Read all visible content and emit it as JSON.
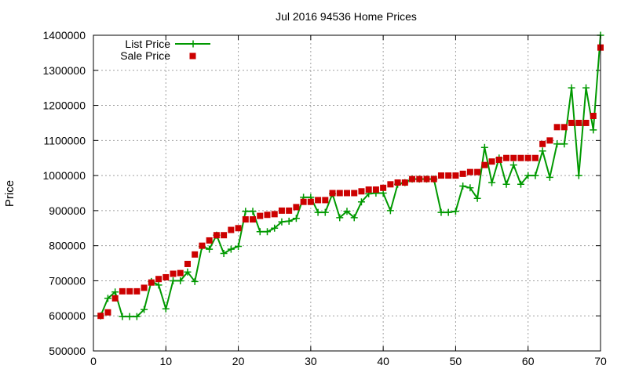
{
  "chart_data": {
    "type": "line",
    "title": "Jul 2016 94536 Home Prices",
    "xlabel": "",
    "ylabel": "Price",
    "xlim": [
      0,
      70
    ],
    "ylim": [
      500000,
      1400000
    ],
    "xticks": [
      0,
      10,
      20,
      30,
      40,
      50,
      60,
      70
    ],
    "yticks": [
      500000,
      600000,
      700000,
      800000,
      900000,
      1000000,
      1100000,
      1200000,
      1300000,
      1400000
    ],
    "grid": true,
    "legend_position": "top-left",
    "x": [
      1,
      2,
      3,
      4,
      5,
      6,
      7,
      8,
      9,
      10,
      11,
      12,
      13,
      14,
      15,
      16,
      17,
      18,
      19,
      20,
      21,
      22,
      23,
      24,
      25,
      26,
      27,
      28,
      29,
      30,
      31,
      32,
      33,
      34,
      35,
      36,
      37,
      38,
      39,
      40,
      41,
      42,
      43,
      44,
      45,
      46,
      47,
      48,
      49,
      50,
      51,
      52,
      53,
      54,
      55,
      56,
      57,
      58,
      59,
      60,
      61,
      62,
      63,
      64,
      65,
      66,
      67,
      68,
      69,
      70
    ],
    "series": [
      {
        "name": "List Price",
        "style": "line+cross",
        "color": "#009900",
        "values": [
          600000,
          650000,
          668000,
          598000,
          598000,
          598000,
          618000,
          698000,
          688000,
          620000,
          700000,
          700000,
          725000,
          698000,
          798000,
          790000,
          830000,
          778000,
          790000,
          798000,
          898000,
          898000,
          840000,
          840000,
          850000,
          868000,
          870000,
          878000,
          938000,
          938000,
          895000,
          895000,
          948000,
          880000,
          898000,
          880000,
          925000,
          948000,
          950000,
          950000,
          900000,
          975000,
          980000,
          990000,
          990000,
          990000,
          990000,
          895000,
          895000,
          898000,
          970000,
          965000,
          935000,
          1080000,
          980000,
          1050000,
          975000,
          1030000,
          975000,
          1000000,
          1000000,
          1070000,
          995000,
          1090000,
          1090000,
          1250000,
          1000000,
          1250000,
          1130000,
          1400000
        ]
      },
      {
        "name": "Sale Price",
        "style": "square-markers",
        "color": "#cc0000",
        "values": [
          600000,
          610000,
          650000,
          670000,
          670000,
          670000,
          680000,
          695000,
          705000,
          710000,
          720000,
          722000,
          748000,
          775000,
          800000,
          815000,
          830000,
          830000,
          845000,
          850000,
          875000,
          875000,
          885000,
          888000,
          890000,
          900000,
          900000,
          910000,
          925000,
          925000,
          930000,
          930000,
          950000,
          950000,
          950000,
          950000,
          955000,
          960000,
          960000,
          965000,
          975000,
          980000,
          980000,
          990000,
          990000,
          990000,
          990000,
          1000000,
          1000000,
          1000000,
          1005000,
          1010000,
          1010000,
          1030000,
          1040000,
          1045000,
          1050000,
          1050000,
          1050000,
          1050000,
          1050000,
          1090000,
          1100000,
          1138000,
          1138000,
          1150000,
          1150000,
          1150000,
          1170000,
          1365000
        ]
      }
    ]
  }
}
